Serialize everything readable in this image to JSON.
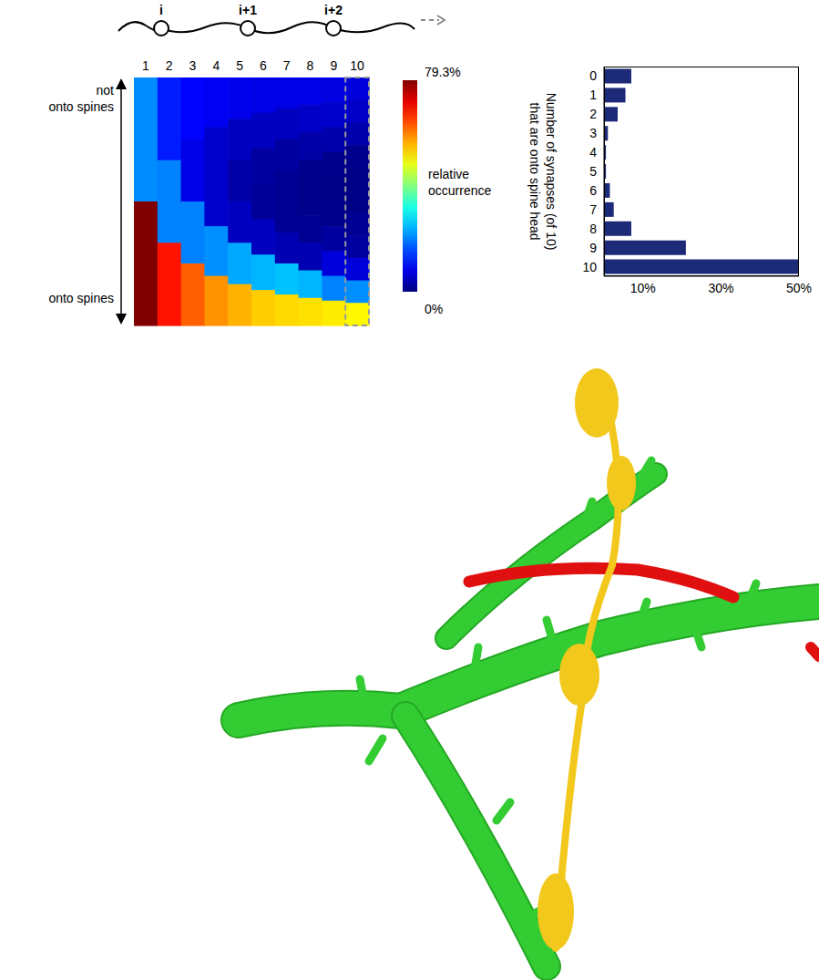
{
  "chart_data": [
    {
      "type": "heatmap",
      "categories": [
        "1",
        "2",
        "3",
        "4",
        "5",
        "6",
        "7",
        "8",
        "9",
        "10"
      ],
      "row_labels": [
        "not onto spines",
        "onto spines"
      ],
      "cells": [
        [
          20.7,
          79.3
        ],
        [
          12,
          20,
          68
        ],
        [
          10,
          8,
          20,
          62
        ],
        [
          9,
          6,
          6,
          21,
          58
        ],
        [
          8.5,
          5,
          3,
          5,
          23,
          55.5
        ],
        [
          8,
          5,
          2.5,
          2,
          5,
          24,
          53.5
        ],
        [
          8,
          5,
          2.5,
          1.5,
          1.5,
          4,
          25,
          52.5
        ],
        [
          8,
          5.5,
          3,
          1,
          1,
          1.5,
          4,
          24,
          52
        ],
        [
          7.5,
          6,
          3.5,
          1,
          0.5,
          1,
          2.5,
          7,
          20,
          51
        ],
        [
          7,
          5.5,
          3.5,
          1,
          0.5,
          0.5,
          1.5,
          2.5,
          7,
          21,
          50
        ]
      ],
      "colorbar": {
        "range": [
          0,
          79.3
        ],
        "ticks": [
          {
            "value": 79.3,
            "label": "79.3%"
          },
          {
            "value": 0,
            "label": "0%"
          }
        ],
        "label": "relative occurrence"
      }
    },
    {
      "type": "bar",
      "orientation": "horizontal",
      "categories": [
        "0",
        "1",
        "2",
        "3",
        "4",
        "5",
        "6",
        "7",
        "8",
        "9",
        "10"
      ],
      "values": [
        7,
        5.5,
        3.5,
        1,
        0.5,
        0.5,
        1.5,
        2.5,
        7,
        21,
        50
      ],
      "color": "#1c2a78",
      "xlim": [
        0,
        50
      ],
      "xticks": [
        {
          "value": 10,
          "label": "10%"
        },
        {
          "value": 30,
          "label": "30%"
        },
        {
          "value": 50,
          "label": "50%"
        }
      ],
      "y_label": "Number of synapses (of 10) that are onto spine head"
    }
  ],
  "diagram": {
    "labels": [
      "i",
      "i+1",
      "i+2"
    ]
  }
}
